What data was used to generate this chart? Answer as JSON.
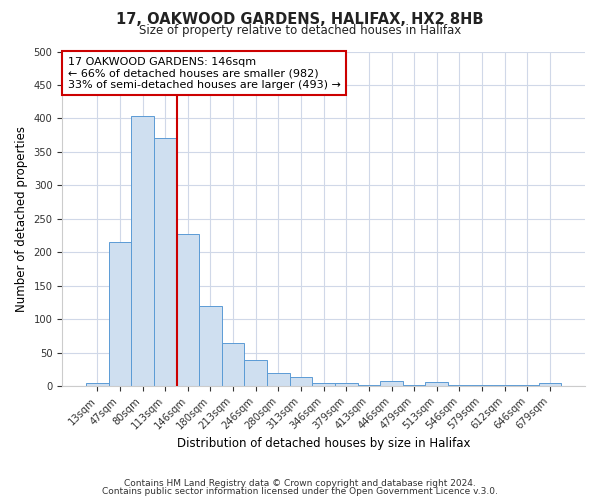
{
  "title": "17, OAKWOOD GARDENS, HALIFAX, HX2 8HB",
  "subtitle": "Size of property relative to detached houses in Halifax",
  "xlabel": "Distribution of detached houses by size in Halifax",
  "ylabel": "Number of detached properties",
  "bar_labels": [
    "13sqm",
    "47sqm",
    "80sqm",
    "113sqm",
    "146sqm",
    "180sqm",
    "213sqm",
    "246sqm",
    "280sqm",
    "313sqm",
    "346sqm",
    "379sqm",
    "413sqm",
    "446sqm",
    "479sqm",
    "513sqm",
    "546sqm",
    "579sqm",
    "612sqm",
    "646sqm",
    "679sqm"
  ],
  "bar_values": [
    5,
    215,
    403,
    370,
    228,
    120,
    64,
    39,
    20,
    14,
    5,
    5,
    2,
    7,
    2,
    6,
    2,
    1,
    1,
    1,
    5
  ],
  "bar_color": "#cfdff0",
  "bar_edge_color": "#5b9bd5",
  "vline_color": "#cc0000",
  "vline_index": 3.5,
  "annotation_title": "17 OAKWOOD GARDENS: 146sqm",
  "annotation_line1": "← 66% of detached houses are smaller (982)",
  "annotation_line2": "33% of semi-detached houses are larger (493) →",
  "annotation_box_edge": "#cc0000",
  "ylim": [
    0,
    500
  ],
  "yticks": [
    0,
    50,
    100,
    150,
    200,
    250,
    300,
    350,
    400,
    450,
    500
  ],
  "footer1": "Contains HM Land Registry data © Crown copyright and database right 2024.",
  "footer2": "Contains public sector information licensed under the Open Government Licence v.3.0.",
  "bg_color": "#ffffff",
  "plot_bg_color": "#ffffff",
  "grid_color": "#d0d8e8"
}
